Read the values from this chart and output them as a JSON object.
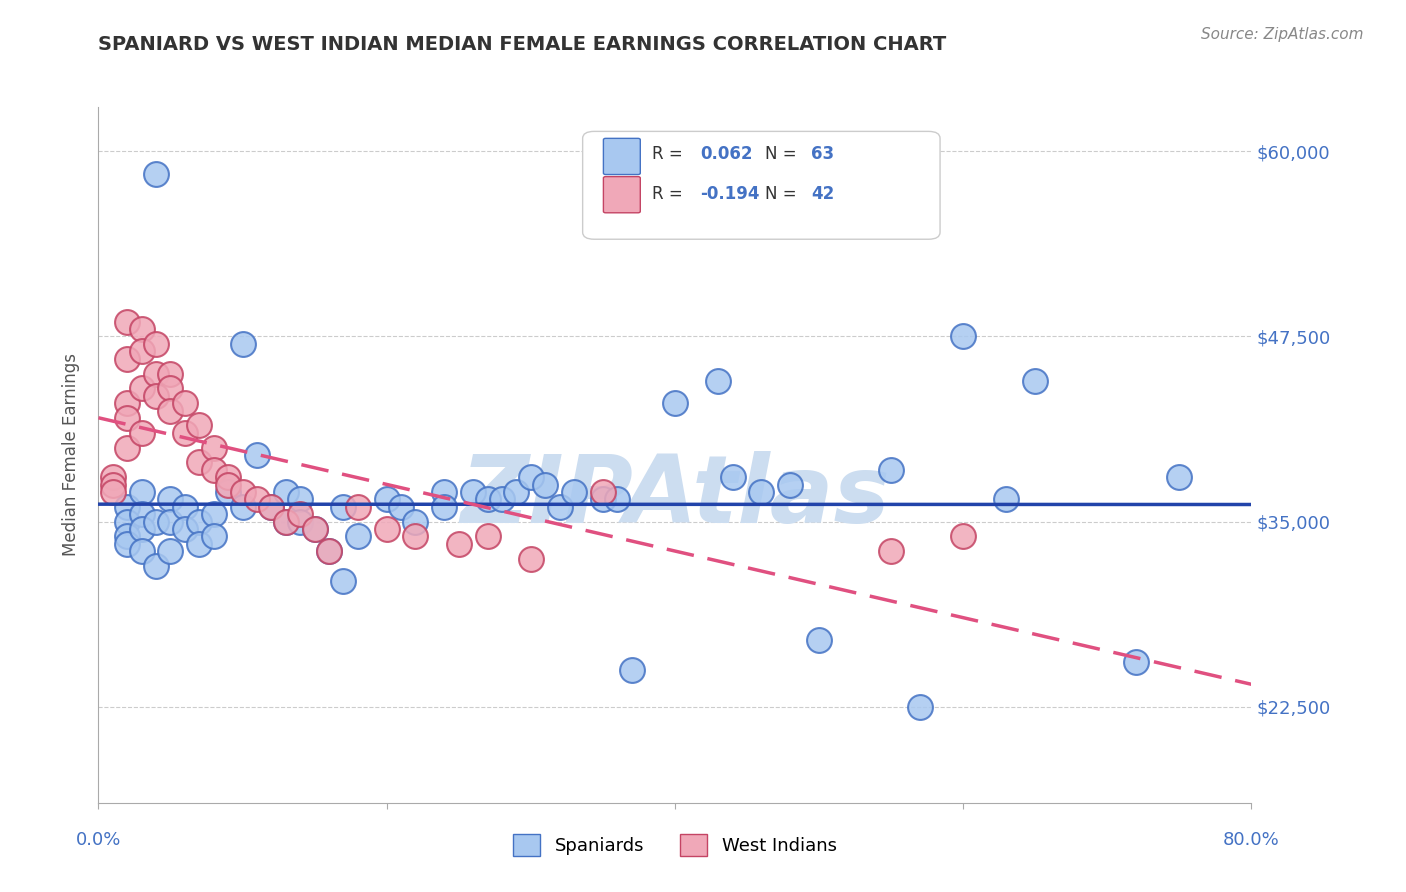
{
  "title": "SPANIARD VS WEST INDIAN MEDIAN FEMALE EARNINGS CORRELATION CHART",
  "source": "Source: ZipAtlas.com",
  "ylabel": "Median Female Earnings",
  "xlim": [
    0.0,
    0.8
  ],
  "ylim": [
    16000,
    63000
  ],
  "yticks": [
    22500,
    35000,
    47500,
    60000
  ],
  "ytick_labels": [
    "$22,500",
    "$35,000",
    "$47,500",
    "$60,000"
  ],
  "color_blue": "#a8c8f0",
  "color_blue_dark": "#4472c4",
  "color_blue_line": "#2244aa",
  "color_pink": "#f0a8b8",
  "color_pink_dark": "#c44464",
  "color_pink_line": "#e05080",
  "color_axis": "#4472c4",
  "color_title": "#333333",
  "background": "#ffffff",
  "watermark_color": "#ccddf0",
  "spaniards_x": [
    0.02,
    0.02,
    0.02,
    0.02,
    0.03,
    0.03,
    0.03,
    0.03,
    0.04,
    0.04,
    0.04,
    0.05,
    0.05,
    0.05,
    0.06,
    0.06,
    0.07,
    0.07,
    0.08,
    0.08,
    0.09,
    0.1,
    0.1,
    0.11,
    0.12,
    0.13,
    0.13,
    0.14,
    0.14,
    0.15,
    0.16,
    0.17,
    0.17,
    0.18,
    0.2,
    0.21,
    0.22,
    0.24,
    0.24,
    0.26,
    0.27,
    0.28,
    0.29,
    0.3,
    0.31,
    0.32,
    0.33,
    0.35,
    0.36,
    0.37,
    0.4,
    0.43,
    0.44,
    0.46,
    0.48,
    0.5,
    0.55,
    0.57,
    0.6,
    0.63,
    0.65,
    0.72,
    0.75
  ],
  "spaniards_y": [
    36000,
    35000,
    34000,
    33500,
    37000,
    35500,
    34500,
    33000,
    58500,
    35000,
    32000,
    36500,
    35000,
    33000,
    36000,
    34500,
    35000,
    33500,
    35500,
    34000,
    37000,
    36000,
    47000,
    39500,
    36000,
    35000,
    37000,
    36500,
    35000,
    34500,
    33000,
    36000,
    31000,
    34000,
    36500,
    36000,
    35000,
    37000,
    36000,
    37000,
    36500,
    36500,
    37000,
    38000,
    37500,
    36000,
    37000,
    36500,
    36500,
    25000,
    43000,
    44500,
    38000,
    37000,
    37500,
    27000,
    38500,
    22500,
    47500,
    36500,
    44500,
    25500,
    38000
  ],
  "westindians_x": [
    0.01,
    0.01,
    0.01,
    0.02,
    0.02,
    0.02,
    0.02,
    0.02,
    0.03,
    0.03,
    0.03,
    0.03,
    0.04,
    0.04,
    0.04,
    0.05,
    0.05,
    0.05,
    0.06,
    0.06,
    0.07,
    0.07,
    0.08,
    0.08,
    0.09,
    0.09,
    0.1,
    0.11,
    0.12,
    0.13,
    0.14,
    0.15,
    0.16,
    0.18,
    0.2,
    0.22,
    0.25,
    0.27,
    0.3,
    0.35,
    0.55,
    0.6
  ],
  "westindians_y": [
    38000,
    37500,
    37000,
    48500,
    46000,
    43000,
    42000,
    40000,
    48000,
    46500,
    44000,
    41000,
    47000,
    45000,
    43500,
    45000,
    44000,
    42500,
    43000,
    41000,
    41500,
    39000,
    40000,
    38500,
    38000,
    37500,
    37000,
    36500,
    36000,
    35000,
    35500,
    34500,
    33000,
    36000,
    34500,
    34000,
    33500,
    34000,
    32500,
    37000,
    33000,
    34000
  ]
}
